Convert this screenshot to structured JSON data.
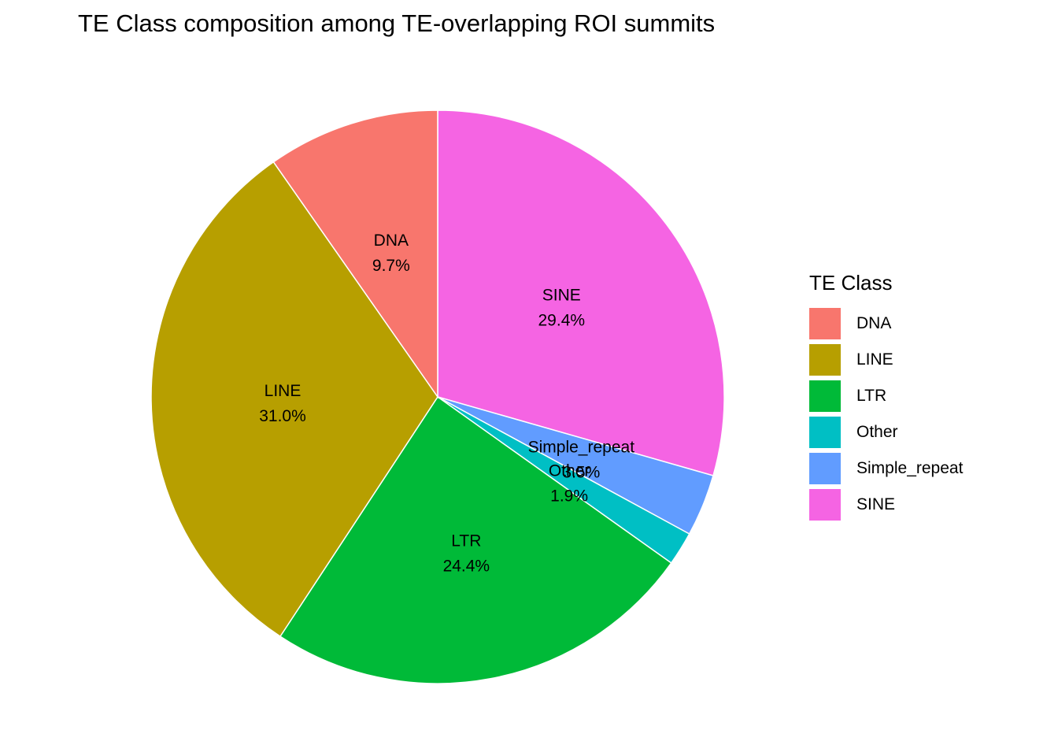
{
  "chart_data": {
    "type": "pie",
    "title": "TE Class composition among TE-overlapping ROI summits",
    "legend_title": "TE Class",
    "legend_position": "right",
    "slices": [
      {
        "name": "DNA",
        "value": 9.7,
        "label": "9.7%",
        "color": "#F8766D"
      },
      {
        "name": "LINE",
        "value": 31.0,
        "label": "31.0%",
        "color": "#B79F00"
      },
      {
        "name": "LTR",
        "value": 24.4,
        "label": "24.4%",
        "color": "#00BA38"
      },
      {
        "name": "Other",
        "value": 1.9,
        "label": "1.9%",
        "color": "#00BFC4"
      },
      {
        "name": "Simple_repeat",
        "value": 3.5,
        "label": "3.5%",
        "color": "#619CFF"
      },
      {
        "name": "SINE",
        "value": 29.4,
        "label": "29.4%",
        "color": "#F564E3"
      }
    ]
  }
}
